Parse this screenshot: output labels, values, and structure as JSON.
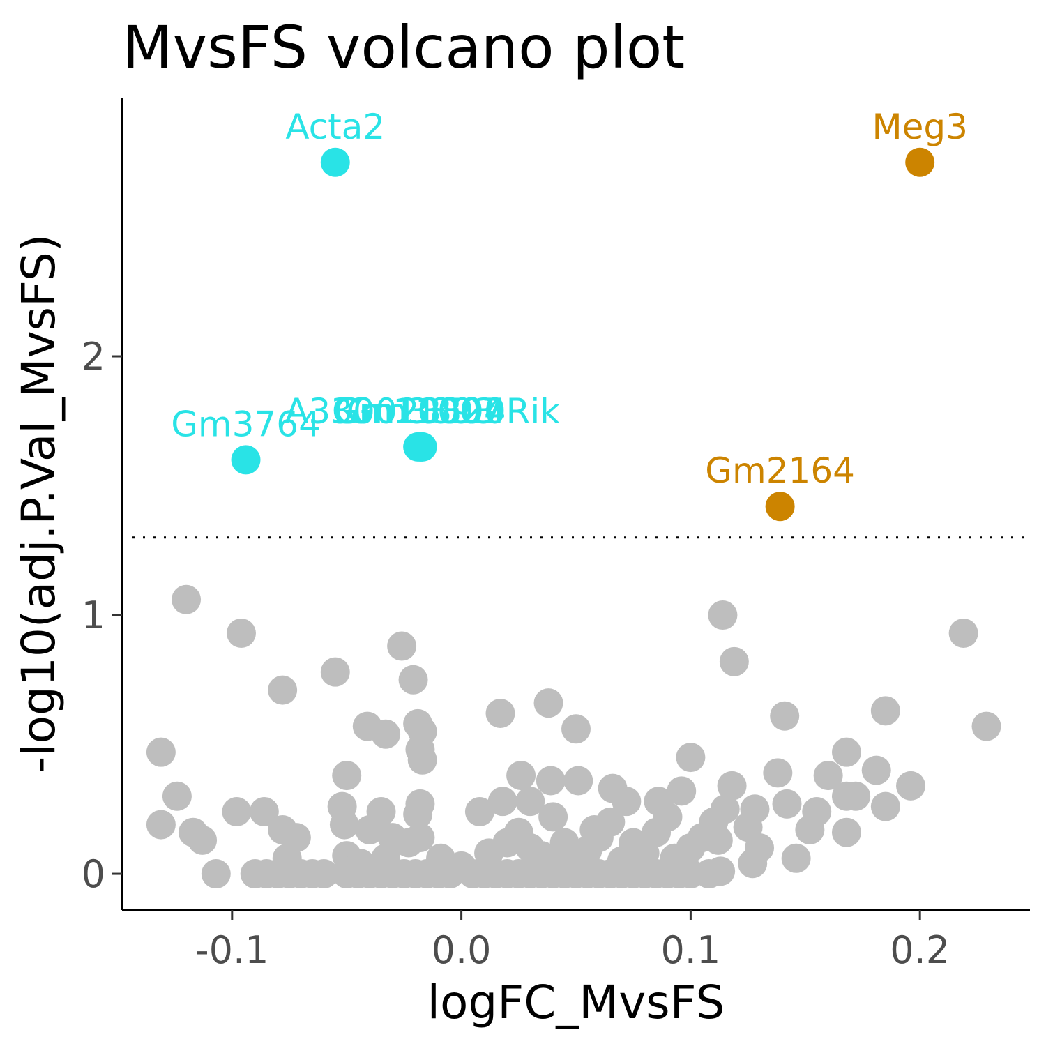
{
  "chart_data": {
    "type": "scatter",
    "title": "MvsFS volcano plot",
    "xlabel": "logFC_MvsFS",
    "ylabel": "-log10(adj.P.Val_MvsFS)",
    "xlim": [
      -0.148,
      0.248
    ],
    "ylim": [
      -0.14,
      3.0
    ],
    "x_ticks": [
      {
        "value": -0.1,
        "label": "-0.1"
      },
      {
        "value": 0.0,
        "label": "0.0"
      },
      {
        "value": 0.1,
        "label": "0.1"
      },
      {
        "value": 0.2,
        "label": "0.2"
      }
    ],
    "y_ticks": [
      {
        "value": 0,
        "label": "0"
      },
      {
        "value": 1,
        "label": "1"
      },
      {
        "value": 2,
        "label": "2"
      }
    ],
    "threshold_y": 1.3,
    "grid": false,
    "legend": "none",
    "colors": {
      "down": "#29E3E6",
      "up": "#CC8400",
      "ns": "#BEBEBE"
    },
    "labeled_genes": [
      {
        "name": "Acta2",
        "x": -0.055,
        "y": 2.75,
        "group": "down"
      },
      {
        "name": "Meg3",
        "x": 0.2,
        "y": 2.75,
        "group": "up"
      },
      {
        "name": "Gm3764",
        "x": -0.094,
        "y": 1.6,
        "group": "down"
      },
      {
        "name": "A330023F24Rik",
        "x": -0.017,
        "y": 1.65,
        "group": "down"
      },
      {
        "name": "Gm10800",
        "x": -0.018,
        "y": 1.65,
        "group": "down"
      },
      {
        "name": "Gm11007",
        "x": -0.019,
        "y": 1.65,
        "group": "down"
      },
      {
        "name": "Gm3893",
        "x": -0.0175,
        "y": 1.65,
        "group": "down"
      },
      {
        "name": "Gm2164",
        "x": 0.139,
        "y": 1.42,
        "group": "up"
      }
    ],
    "background_points": [
      [
        -0.12,
        1.06
      ],
      [
        -0.096,
        0.93
      ],
      [
        -0.055,
        0.78
      ],
      [
        -0.078,
        0.71
      ],
      [
        -0.026,
        0.88
      ],
      [
        -0.021,
        0.75
      ],
      [
        -0.041,
        0.57
      ],
      [
        -0.033,
        0.54
      ],
      [
        -0.019,
        0.58
      ],
      [
        -0.017,
        0.55
      ],
      [
        -0.018,
        0.48
      ],
      [
        -0.017,
        0.44
      ],
      [
        -0.131,
        0.47
      ],
      [
        -0.124,
        0.3
      ],
      [
        -0.131,
        0.19
      ],
      [
        -0.117,
        0.16
      ],
      [
        -0.113,
        0.13
      ],
      [
        -0.107,
        0.0
      ],
      [
        -0.098,
        0.24
      ],
      [
        -0.086,
        0.24
      ],
      [
        -0.078,
        0.17
      ],
      [
        -0.072,
        0.14
      ],
      [
        -0.076,
        0.06
      ],
      [
        -0.05,
        0.38
      ],
      [
        -0.052,
        0.26
      ],
      [
        -0.051,
        0.19
      ],
      [
        -0.04,
        0.17
      ],
      [
        -0.035,
        0.24
      ],
      [
        -0.03,
        0.14
      ],
      [
        -0.018,
        0.27
      ],
      [
        -0.019,
        0.23
      ],
      [
        -0.018,
        0.14
      ],
      [
        -0.023,
        0.12
      ],
      [
        -0.05,
        0.07
      ],
      [
        -0.044,
        0.04
      ],
      [
        -0.033,
        0.06
      ],
      [
        -0.009,
        0.06
      ],
      [
        0.0,
        0.03
      ],
      [
        0.008,
        0.24
      ],
      [
        0.018,
        0.28
      ],
      [
        0.017,
        0.62
      ],
      [
        0.038,
        0.66
      ],
      [
        0.05,
        0.56
      ],
      [
        0.026,
        0.38
      ],
      [
        0.039,
        0.36
      ],
      [
        0.051,
        0.36
      ],
      [
        0.03,
        0.28
      ],
      [
        0.04,
        0.22
      ],
      [
        0.058,
        0.17
      ],
      [
        0.066,
        0.33
      ],
      [
        0.072,
        0.28
      ],
      [
        0.086,
        0.28
      ],
      [
        0.096,
        0.32
      ],
      [
        0.1,
        0.45
      ],
      [
        0.114,
        1.0
      ],
      [
        0.119,
        0.82
      ],
      [
        0.141,
        0.61
      ],
      [
        0.138,
        0.39
      ],
      [
        0.118,
        0.34
      ],
      [
        0.115,
        0.25
      ],
      [
        0.128,
        0.25
      ],
      [
        0.142,
        0.27
      ],
      [
        0.155,
        0.24
      ],
      [
        0.152,
        0.17
      ],
      [
        0.16,
        0.38
      ],
      [
        0.168,
        0.47
      ],
      [
        0.168,
        0.3
      ],
      [
        0.172,
        0.3
      ],
      [
        0.181,
        0.4
      ],
      [
        0.185,
        0.63
      ],
      [
        0.185,
        0.26
      ],
      [
        0.196,
        0.34
      ],
      [
        0.168,
        0.16
      ],
      [
        0.219,
        0.93
      ],
      [
        0.229,
        0.57
      ],
      [
        0.146,
        0.06
      ],
      [
        0.127,
        0.04
      ],
      [
        0.093,
        0.06
      ],
      [
        0.02,
        0.12
      ],
      [
        0.03,
        0.1
      ],
      [
        0.045,
        0.12
      ],
      [
        0.06,
        0.14
      ],
      [
        0.075,
        0.12
      ],
      [
        0.085,
        0.16
      ],
      [
        0.105,
        0.14
      ],
      [
        0.112,
        0.13
      ],
      [
        0.125,
        0.18
      ],
      [
        0.13,
        0.1
      ],
      [
        0.047,
        0.05
      ],
      [
        0.07,
        0.05
      ],
      [
        -0.09,
        0.0
      ],
      [
        -0.085,
        0.0
      ],
      [
        -0.08,
        0.0
      ],
      [
        -0.075,
        0.0
      ],
      [
        -0.07,
        0.0
      ],
      [
        -0.065,
        0.0
      ],
      [
        -0.06,
        0.0
      ],
      [
        -0.05,
        0.0
      ],
      [
        -0.045,
        0.0
      ],
      [
        -0.04,
        0.0
      ],
      [
        -0.035,
        0.0
      ],
      [
        -0.03,
        0.0
      ],
      [
        -0.025,
        0.0
      ],
      [
        -0.02,
        0.0
      ],
      [
        -0.015,
        0.0
      ],
      [
        -0.01,
        0.0
      ],
      [
        -0.005,
        0.0
      ],
      [
        0.005,
        0.0
      ],
      [
        0.01,
        0.0
      ],
      [
        0.015,
        0.0
      ],
      [
        0.02,
        0.0
      ],
      [
        0.025,
        0.0
      ],
      [
        0.03,
        0.0
      ],
      [
        0.035,
        0.0
      ],
      [
        0.04,
        0.0
      ],
      [
        0.045,
        0.0
      ],
      [
        0.05,
        0.0
      ],
      [
        0.055,
        0.0
      ],
      [
        0.06,
        0.0
      ],
      [
        0.065,
        0.0
      ],
      [
        0.07,
        0.0
      ],
      [
        0.075,
        0.0
      ],
      [
        0.08,
        0.0
      ],
      [
        0.085,
        0.0
      ],
      [
        0.09,
        0.0
      ],
      [
        0.095,
        0.0
      ],
      [
        0.1,
        0.0
      ],
      [
        0.108,
        0.0
      ],
      [
        0.113,
        0.01
      ],
      [
        0.012,
        0.08
      ],
      [
        0.035,
        0.07
      ],
      [
        0.055,
        0.09
      ],
      [
        0.08,
        0.08
      ],
      [
        0.1,
        0.1
      ],
      [
        0.025,
        0.16
      ],
      [
        0.065,
        0.2
      ],
      [
        0.09,
        0.22
      ],
      [
        0.11,
        0.2
      ]
    ]
  }
}
